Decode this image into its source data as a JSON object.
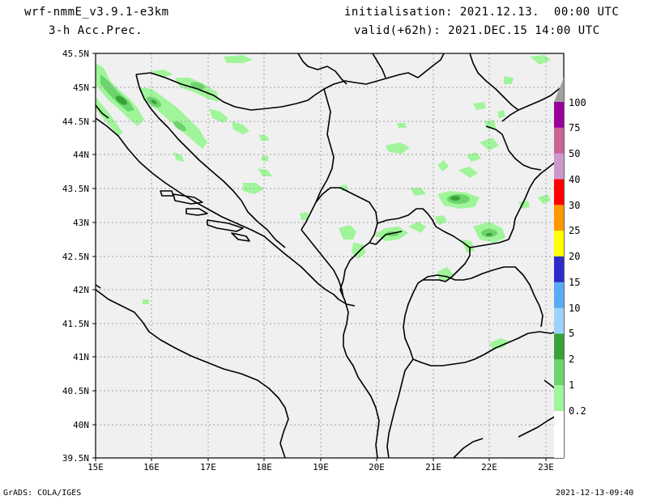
{
  "header": {
    "model": "wrf-nmmE_v3.9.1-e3km",
    "field": "3-h Acc.Prec.",
    "init": "initialisation: 2021.12.13.  00:00 UTC",
    "valid": "valid(+62h): 2021.DEC.15 14:00 UTC"
  },
  "footer": {
    "left": "GrADS: COLA/IGES",
    "right": "2021-12-13-09:40"
  },
  "axes": {
    "lat_labels": [
      "45.5N",
      "45N",
      "44.5N",
      "44N",
      "43.5N",
      "43N",
      "42.5N",
      "42N",
      "41.5N",
      "41N",
      "40.5N",
      "40N",
      "39.5N"
    ],
    "lon_labels": [
      "15E",
      "16E",
      "17E",
      "18E",
      "19E",
      "20E",
      "21E",
      "22E",
      "23E"
    ]
  },
  "colorbar": {
    "levels": [
      "0.2",
      "1",
      "2",
      "5",
      "10",
      "15",
      "20",
      "25",
      "30",
      "40",
      "50",
      "75",
      "100"
    ],
    "colors": [
      "#a0f59a",
      "#6cd46c",
      "#37a237",
      "#9dd2fd",
      "#59aaf5",
      "#2b2bc8",
      "#ffff00",
      "#ff9900",
      "#ff0000",
      "#cc99cc",
      "#c86496",
      "#990099",
      "#a0a0a0"
    ]
  },
  "colors": {
    "land": "#f0f0f0",
    "grid": "#a0a0a0",
    "light_green": "#a0f59a",
    "mid_green": "#6cd46c",
    "dark_green": "#37a237"
  }
}
